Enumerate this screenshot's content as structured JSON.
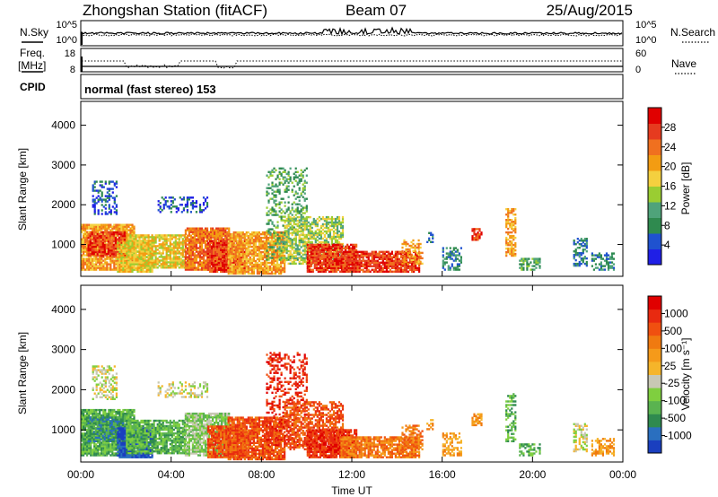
{
  "header": {
    "title": "Zhongshan Station (fitACF)",
    "beam": "Beam 07",
    "date": "25/Aug/2015"
  },
  "panels": {
    "nsky_label": "N.Sky",
    "nsearch_label": "N.Search",
    "freq_label_line1": "Freq.",
    "freq_label_line2": "[MHz]",
    "nave_label": "Nave",
    "cpid_label": "CPID",
    "cpid_text": "normal (fast stereo) 153",
    "noise_axis": {
      "top": "10^5",
      "bottom": "10^0"
    },
    "freq_axis": {
      "top": "18",
      "bottom": "8"
    },
    "nave_axis": {
      "top": "60",
      "bottom": "0"
    }
  },
  "chart_data": [
    {
      "type": "heatmap",
      "title": "",
      "ylabel": "Slant Range [km]",
      "ylim": [
        200,
        4600
      ],
      "yticks": [
        "1000",
        "2000",
        "3000",
        "4000"
      ],
      "colorbar": {
        "label": "Power [dB]",
        "range": [
          0,
          32
        ],
        "ticks": [
          "4",
          "8",
          "12",
          "16",
          "20",
          "24",
          "28"
        ],
        "colors": [
          "#1f1fe6",
          "#1f52cf",
          "#2f8a4f",
          "#4fa37a",
          "#9acd32",
          "#f4d03f",
          "#f39c12",
          "#f0701f",
          "#e63b1f",
          "#e00000"
        ]
      }
    },
    {
      "type": "heatmap",
      "title": "",
      "ylabel": "Slant Range [km]",
      "ylim": [
        200,
        4600
      ],
      "yticks": [
        "1000",
        "2000",
        "3000",
        "4000"
      ],
      "xlabel": "Time UT",
      "xticks": [
        "00:00",
        "04:00",
        "08:00",
        "12:00",
        "16:00",
        "20:00",
        "00:00"
      ],
      "colorbar": {
        "label": "Velocity [m s⁻¹]",
        "ticks": [
          "1000",
          "500",
          "100",
          "25",
          "-25",
          "-100",
          "-500",
          "-1000"
        ],
        "colors": [
          "#1a3fbf",
          "#2a6fbf",
          "#2f8a4f",
          "#5ab350",
          "#7fcf3f",
          "#c8c8b4",
          "#f5b52a",
          "#f59a1a",
          "#f07a10",
          "#f05010",
          "#e82a10",
          "#e00000"
        ]
      }
    }
  ]
}
